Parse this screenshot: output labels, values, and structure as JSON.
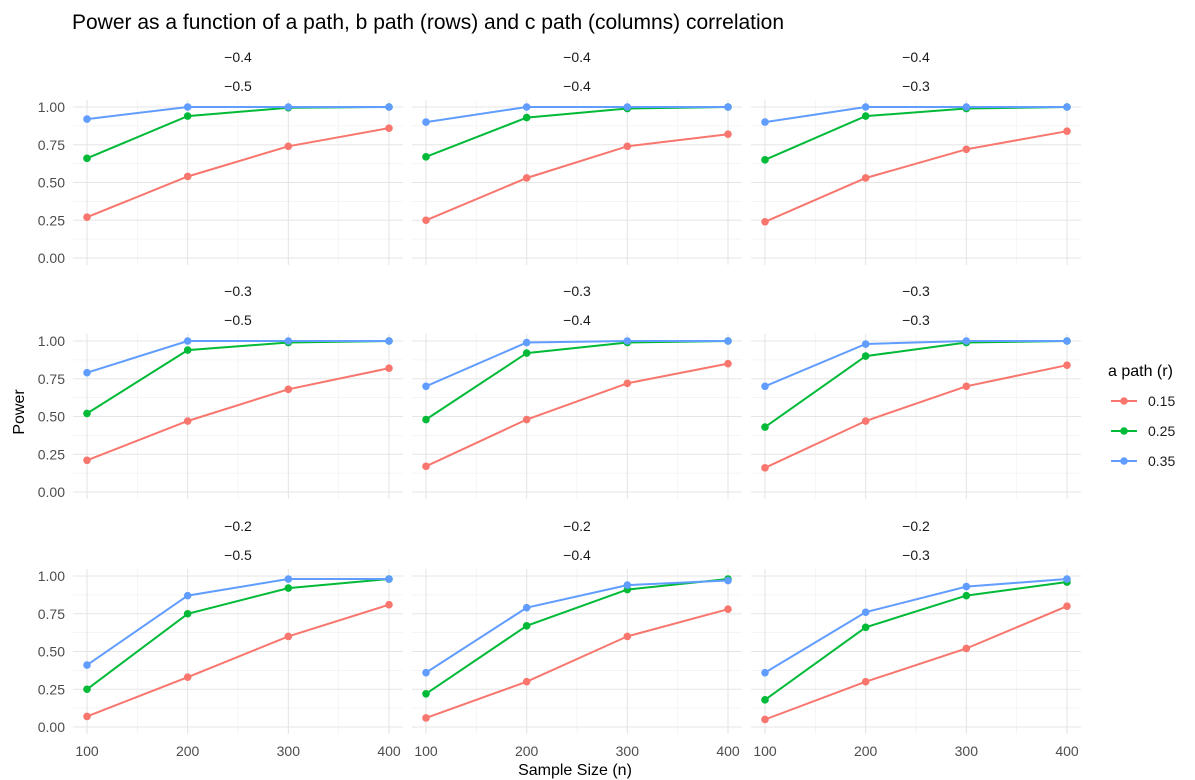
{
  "chart_data": {
    "type": "line",
    "title": "Power as a function of a path, b path (rows) and c path (columns) correlation",
    "xlabel": "Sample Size (n)",
    "ylabel": "Power",
    "x": [
      100,
      200,
      300,
      400
    ],
    "x_ticks": [
      "100",
      "200",
      "300",
      "400"
    ],
    "y_ticks": [
      "0.00",
      "0.25",
      "0.50",
      "0.75",
      "1.00"
    ],
    "ylim": [
      0,
      1
    ],
    "grid": true,
    "legend": {
      "title": "a path (r)",
      "position": "right",
      "entries": [
        "0.15",
        "0.25",
        "0.35"
      ],
      "colors": [
        "#f8766d",
        "#00ba38",
        "#619cff"
      ]
    },
    "panels": [
      {
        "row_label": "−0.4",
        "col_label": "−0.5",
        "series": [
          {
            "name": "0.15",
            "values": [
              0.27,
              0.54,
              0.74,
              0.86
            ]
          },
          {
            "name": "0.25",
            "values": [
              0.66,
              0.94,
              0.995,
              1.0
            ]
          },
          {
            "name": "0.35",
            "values": [
              0.92,
              1.0,
              1.0,
              1.0
            ]
          }
        ]
      },
      {
        "row_label": "−0.4",
        "col_label": "−0.4",
        "series": [
          {
            "name": "0.15",
            "values": [
              0.25,
              0.53,
              0.74,
              0.82
            ]
          },
          {
            "name": "0.25",
            "values": [
              0.67,
              0.93,
              0.99,
              1.0
            ]
          },
          {
            "name": "0.35",
            "values": [
              0.9,
              1.0,
              1.0,
              1.0
            ]
          }
        ]
      },
      {
        "row_label": "−0.4",
        "col_label": "−0.3",
        "series": [
          {
            "name": "0.15",
            "values": [
              0.24,
              0.53,
              0.72,
              0.84
            ]
          },
          {
            "name": "0.25",
            "values": [
              0.65,
              0.94,
              0.99,
              1.0
            ]
          },
          {
            "name": "0.35",
            "values": [
              0.9,
              1.0,
              1.0,
              1.0
            ]
          }
        ]
      },
      {
        "row_label": "−0.3",
        "col_label": "−0.5",
        "series": [
          {
            "name": "0.15",
            "values": [
              0.21,
              0.47,
              0.68,
              0.82
            ]
          },
          {
            "name": "0.25",
            "values": [
              0.52,
              0.94,
              0.99,
              1.0
            ]
          },
          {
            "name": "0.35",
            "values": [
              0.79,
              1.0,
              1.0,
              1.0
            ]
          }
        ]
      },
      {
        "row_label": "−0.3",
        "col_label": "−0.4",
        "series": [
          {
            "name": "0.15",
            "values": [
              0.17,
              0.48,
              0.72,
              0.85
            ]
          },
          {
            "name": "0.25",
            "values": [
              0.48,
              0.92,
              0.99,
              1.0
            ]
          },
          {
            "name": "0.35",
            "values": [
              0.7,
              0.99,
              1.0,
              1.0
            ]
          }
        ]
      },
      {
        "row_label": "−0.3",
        "col_label": "−0.3",
        "series": [
          {
            "name": "0.15",
            "values": [
              0.16,
              0.47,
              0.7,
              0.84
            ]
          },
          {
            "name": "0.25",
            "values": [
              0.43,
              0.9,
              0.99,
              1.0
            ]
          },
          {
            "name": "0.35",
            "values": [
              0.7,
              0.98,
              1.0,
              1.0
            ]
          }
        ]
      },
      {
        "row_label": "−0.2",
        "col_label": "−0.5",
        "series": [
          {
            "name": "0.15",
            "values": [
              0.07,
              0.33,
              0.6,
              0.81
            ]
          },
          {
            "name": "0.25",
            "values": [
              0.25,
              0.75,
              0.92,
              0.98
            ]
          },
          {
            "name": "0.35",
            "values": [
              0.41,
              0.87,
              0.98,
              0.98
            ]
          }
        ]
      },
      {
        "row_label": "−0.2",
        "col_label": "−0.4",
        "series": [
          {
            "name": "0.15",
            "values": [
              0.06,
              0.3,
              0.6,
              0.78
            ]
          },
          {
            "name": "0.25",
            "values": [
              0.22,
              0.67,
              0.91,
              0.98
            ]
          },
          {
            "name": "0.35",
            "values": [
              0.36,
              0.79,
              0.94,
              0.97
            ]
          }
        ]
      },
      {
        "row_label": "−0.2",
        "col_label": "−0.3",
        "series": [
          {
            "name": "0.15",
            "values": [
              0.05,
              0.3,
              0.52,
              0.8
            ]
          },
          {
            "name": "0.25",
            "values": [
              0.18,
              0.66,
              0.87,
              0.96
            ]
          },
          {
            "name": "0.35",
            "values": [
              0.36,
              0.76,
              0.93,
              0.98
            ]
          }
        ]
      }
    ]
  }
}
